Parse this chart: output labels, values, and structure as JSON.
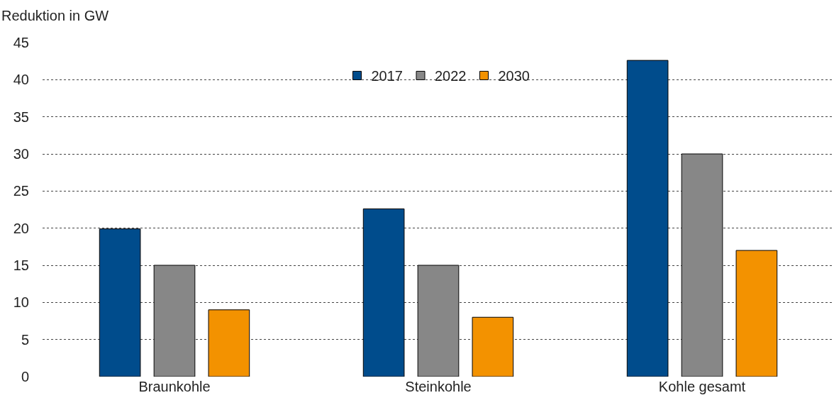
{
  "chart_data": {
    "type": "bar",
    "ylabel": "Reduktion in GW",
    "categories": [
      "Braunkohle",
      "Steinkohle",
      "Kohle gesamt"
    ],
    "series": [
      {
        "name": "2017",
        "color": "#004c8c",
        "values": [
          19.9,
          22.6,
          42.6
        ]
      },
      {
        "name": "2022",
        "color": "#878787",
        "values": [
          15,
          15,
          30
        ]
      },
      {
        "name": "2030",
        "color": "#f39200",
        "values": [
          9,
          8,
          17
        ]
      }
    ],
    "ylim": [
      0,
      45
    ],
    "yticks": [
      0,
      5,
      10,
      15,
      20,
      25,
      30,
      35,
      40,
      45
    ],
    "grid": "y",
    "legend": "top"
  }
}
